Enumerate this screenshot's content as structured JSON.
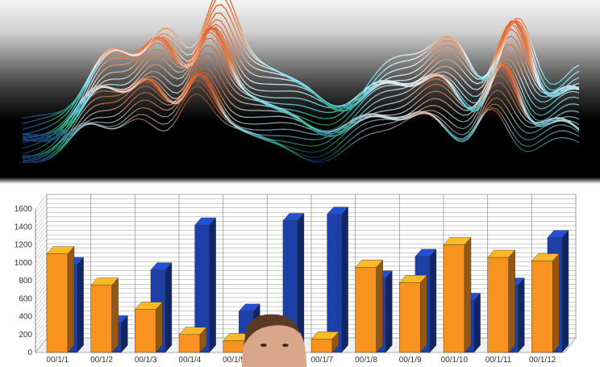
{
  "colors": {
    "front_series": "#f7931e",
    "back_series": "#1c3fa8",
    "grid": "#9a9a9a",
    "background": "#ffffff"
  },
  "chart_data": [
    {
      "type": "surface",
      "title": "",
      "xlabel": "",
      "ylabel": ""
    },
    {
      "type": "bar",
      "title": "",
      "xlabel": "",
      "ylabel": "",
      "ylim": [
        0,
        1600
      ],
      "yticks": [
        0,
        200,
        400,
        600,
        800,
        1000,
        1200,
        1400,
        1600
      ],
      "categories": [
        "00/1/1",
        "00/1/2",
        "00/1/3",
        "00/1/4",
        "00/1/5",
        "00/1/6",
        "00/1/7",
        "00/1/8",
        "00/1/9",
        "00/1/10",
        "00/1/11",
        "00/1/12"
      ],
      "series": [
        {
          "values": [
            1100,
            750,
            480,
            200,
            130,
            60,
            150,
            950,
            780,
            1200,
            1060,
            1020
          ]
        },
        {
          "values": [
            980,
            330,
            920,
            1420,
            460,
            1470,
            1540,
            830,
            1070,
            580,
            750,
            1280
          ]
        }
      ],
      "grid": true,
      "legend": "none"
    }
  ]
}
